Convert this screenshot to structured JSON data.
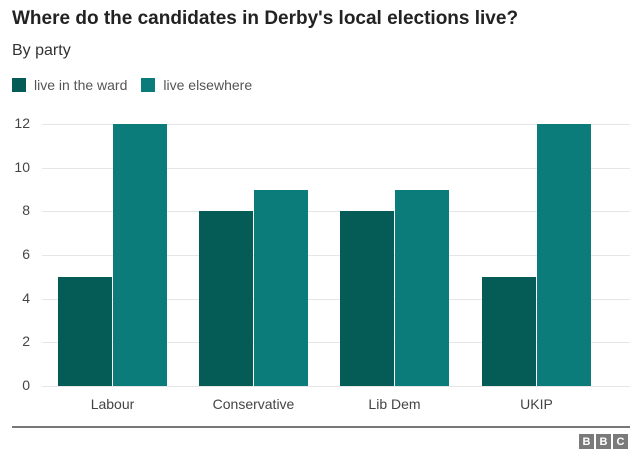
{
  "chart_data": {
    "type": "bar",
    "title": "Where do the candidates in Derby's local elections live?",
    "subtitle": "By party",
    "categories": [
      "Labour",
      "Conservative",
      "Lib Dem",
      "UKIP"
    ],
    "series": [
      {
        "name": "live in the ward",
        "color": "#055c57",
        "values": [
          5,
          8,
          8,
          5
        ]
      },
      {
        "name": "live elsewhere",
        "color": "#0b7c79",
        "values": [
          12,
          9,
          9,
          12
        ]
      }
    ],
    "xlabel": "",
    "ylabel": "",
    "ylim": [
      0,
      12
    ],
    "yticks": [
      0,
      2,
      4,
      6,
      8,
      10,
      12
    ],
    "grid": true,
    "legend_position": "top-left"
  },
  "source_logo": [
    "B",
    "B",
    "C"
  ]
}
